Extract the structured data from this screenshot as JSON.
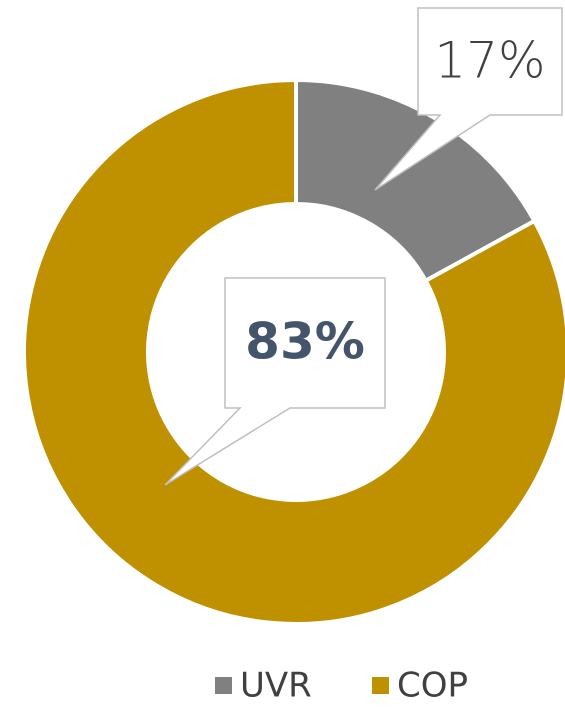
{
  "chart_data": {
    "type": "pie",
    "categories": [
      "UVR",
      "COP"
    ],
    "values": [
      17,
      83
    ],
    "value_labels": [
      "17%",
      "83%"
    ],
    "colors": [
      "#808080",
      "#bf9000"
    ]
  }
}
